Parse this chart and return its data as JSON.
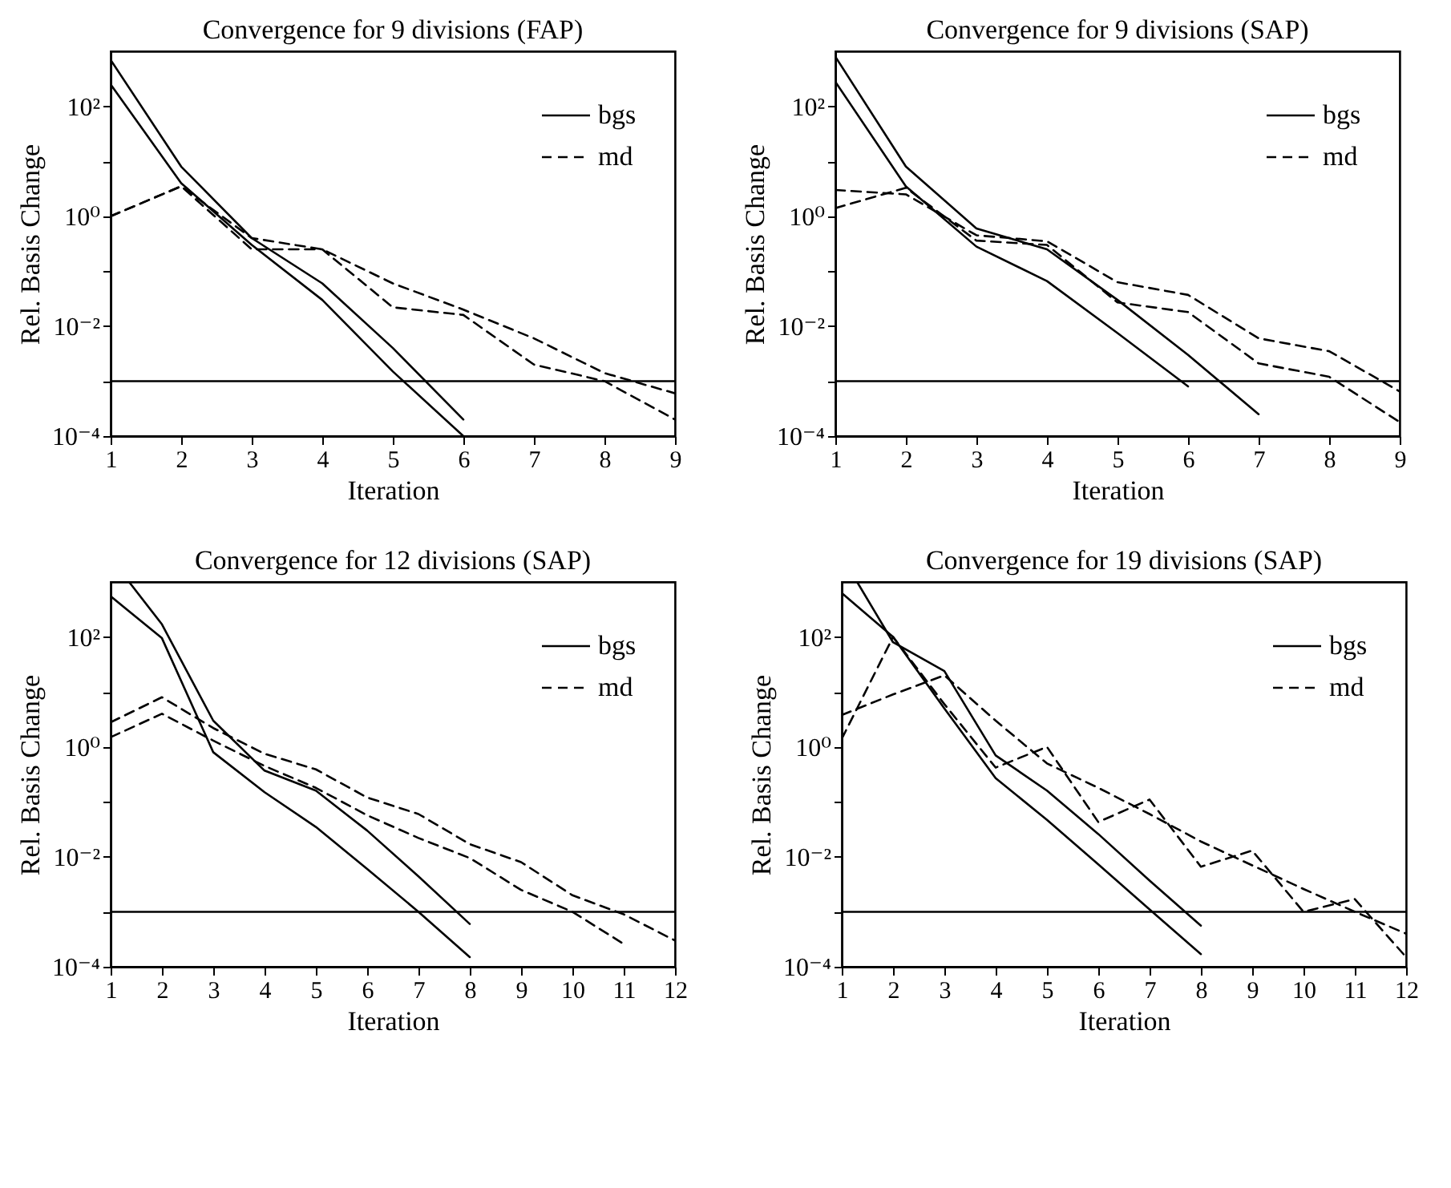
{
  "chart_data": [
    {
      "type": "line",
      "title": "Convergence for 9 divisions (FAP)",
      "xlabel": "Iteration",
      "ylabel": "Rel. Basis Change",
      "x": [
        1,
        2,
        3,
        4,
        5,
        6,
        7,
        8,
        9
      ],
      "log": "y",
      "xlim": [
        1,
        9
      ],
      "xticks": [
        1,
        2,
        3,
        4,
        5,
        6,
        7,
        8,
        9
      ],
      "ylim": [
        0.0001,
        1000
      ],
      "yticks": [
        {
          "value": 0.0001,
          "label": "10⁻⁴"
        },
        {
          "value": 0.001,
          "label": null
        },
        {
          "value": 0.01,
          "label": "10⁻²"
        },
        {
          "value": 0.1,
          "label": null
        },
        {
          "value": 1,
          "label": "10⁰"
        },
        {
          "value": 10,
          "label": null
        },
        {
          "value": 100,
          "label": "10²"
        }
      ],
      "legend": "top right",
      "ref_lines": [
        {
          "axis": "y",
          "value": 0.001,
          "color": "#000000"
        }
      ],
      "series": [
        {
          "name": "bgs",
          "color": "#000000",
          "line_style": "solid",
          "values": [
            700,
            8,
            0.4,
            0.06,
            0.004,
            0.0002,
            null,
            null,
            null
          ]
        },
        {
          "color": "#000000",
          "line_style": "solid",
          "values": [
            250,
            4,
            0.3,
            0.03,
            0.0015,
            0.0001,
            null,
            null,
            null
          ]
        },
        {
          "name": "md",
          "color": "#000000",
          "line_style": "dashed",
          "values": [
            1,
            3.5,
            0.4,
            0.25,
            0.06,
            0.02,
            0.006,
            0.0014,
            0.0006
          ]
        },
        {
          "color": "#000000",
          "line_style": "dashed",
          "values": [
            1,
            3.5,
            0.25,
            0.25,
            0.022,
            0.016,
            0.002,
            0.001,
            0.0002
          ]
        }
      ]
    },
    {
      "type": "line",
      "title": "Convergence for 9 divisions (SAP)",
      "xlabel": "Iteration",
      "ylabel": "Rel. Basis Change",
      "x": [
        1,
        2,
        3,
        4,
        5,
        6,
        7,
        8,
        9
      ],
      "log": "y",
      "xlim": [
        1,
        9
      ],
      "xticks": [
        1,
        2,
        3,
        4,
        5,
        6,
        7,
        8,
        9
      ],
      "ylim": [
        0.0001,
        1000
      ],
      "yticks": [
        {
          "value": 0.0001,
          "label": "10⁻⁴"
        },
        {
          "value": 0.001,
          "label": null
        },
        {
          "value": 0.01,
          "label": "10⁻²"
        },
        {
          "value": 0.1,
          "label": null
        },
        {
          "value": 1,
          "label": "10⁰"
        },
        {
          "value": 10,
          "label": null
        },
        {
          "value": 100,
          "label": "10²"
        }
      ],
      "legend": "top right",
      "ref_lines": [
        {
          "axis": "y",
          "value": 0.001,
          "color": "#000000"
        }
      ],
      "series": [
        {
          "name": "bgs",
          "color": "#000000",
          "line_style": "solid",
          "values": [
            800,
            8,
            0.6,
            0.25,
            0.03,
            0.003,
            0.00025,
            null,
            null
          ]
        },
        {
          "color": "#000000",
          "line_style": "solid",
          "values": [
            280,
            3.5,
            0.28,
            0.066,
            0.0075,
            0.0008,
            null,
            null,
            null
          ]
        },
        {
          "name": "md",
          "color": "#000000",
          "line_style": "dashed",
          "values": [
            3,
            2.5,
            0.45,
            0.35,
            0.063,
            0.037,
            0.006,
            0.0035,
            0.00065
          ]
        },
        {
          "color": "#000000",
          "line_style": "dashed",
          "values": [
            1.4,
            3.3,
            0.36,
            0.3,
            0.027,
            0.018,
            0.0021,
            0.0012,
            0.00018
          ]
        }
      ]
    },
    {
      "type": "line",
      "title": "Convergence for 12 divisions (SAP)",
      "xlabel": "Iteration",
      "ylabel": "Rel. Basis Change",
      "x": [
        1,
        2,
        3,
        4,
        5,
        6,
        7,
        8,
        9,
        10,
        11,
        12
      ],
      "log": "y",
      "xlim": [
        1,
        12
      ],
      "xticks": [
        1,
        2,
        3,
        4,
        5,
        6,
        7,
        8,
        9,
        10,
        11,
        12
      ],
      "ylim": [
        0.0001,
        1000
      ],
      "yticks": [
        {
          "value": 0.0001,
          "label": "10⁻⁴"
        },
        {
          "value": 0.001,
          "label": null
        },
        {
          "value": 0.01,
          "label": "10⁻²"
        },
        {
          "value": 0.1,
          "label": null
        },
        {
          "value": 1,
          "label": "10⁰"
        },
        {
          "value": 10,
          "label": null
        },
        {
          "value": 100,
          "label": "10²"
        }
      ],
      "legend": "top right",
      "ref_lines": [
        {
          "axis": "y",
          "value": 0.001,
          "color": "#000000"
        }
      ],
      "series": [
        {
          "name": "bgs",
          "color": "#000000",
          "line_style": "solid",
          "x": [
            1.36,
            2,
            3,
            4,
            5,
            6,
            7,
            8
          ],
          "values": [
            1000,
            170,
            3,
            0.37,
            0.16,
            0.03,
            0.0044,
            0.0006
          ]
        },
        {
          "color": "#000000",
          "line_style": "solid",
          "x": [
            1,
            2,
            3,
            4,
            5,
            6,
            7,
            8
          ],
          "values": [
            550,
            95,
            0.8,
            0.15,
            0.035,
            0.006,
            0.001,
            0.00015
          ]
        },
        {
          "name": "md",
          "color": "#000000",
          "line_style": "dashed",
          "values": [
            2.8,
            8,
            2.2,
            0.75,
            0.39,
            0.12,
            0.06,
            0.017,
            0.008,
            0.002,
            0.0009,
            0.0003
          ]
        },
        {
          "color": "#000000",
          "line_style": "dashed",
          "values": [
            1.5,
            4,
            1.3,
            0.45,
            0.18,
            0.057,
            0.022,
            0.0095,
            0.0025,
            0.001,
            0.00026,
            null
          ]
        }
      ]
    },
    {
      "type": "line",
      "title": "Convergence for 19 divisions (SAP)",
      "xlabel": "Iteration",
      "ylabel": "Rel. Basis Change",
      "x": [
        1,
        2,
        3,
        4,
        5,
        6,
        7,
        8,
        9,
        10,
        11,
        12
      ],
      "log": "y",
      "xlim": [
        1,
        12
      ],
      "xticks": [
        1,
        2,
        3,
        4,
        5,
        6,
        7,
        8,
        9,
        10,
        11,
        12
      ],
      "ylim": [
        0.0001,
        1000
      ],
      "yticks": [
        {
          "value": 0.0001,
          "label": "10⁻⁴"
        },
        {
          "value": 0.001,
          "label": null
        },
        {
          "value": 0.01,
          "label": "10⁻²"
        },
        {
          "value": 0.1,
          "label": null
        },
        {
          "value": 1,
          "label": "10⁰"
        },
        {
          "value": 10,
          "label": null
        },
        {
          "value": 100,
          "label": "10²"
        }
      ],
      "legend": "top right",
      "ref_lines": [
        {
          "axis": "y",
          "value": 0.001,
          "color": "#000000"
        }
      ],
      "series": [
        {
          "name": "bgs",
          "color": "#000000",
          "line_style": "solid",
          "x": [
            1.3,
            2,
            3,
            4,
            5,
            6,
            7,
            8
          ],
          "values": [
            1000,
            80,
            24,
            0.7,
            0.16,
            0.026,
            0.0037,
            0.00056
          ]
        },
        {
          "color": "#000000",
          "line_style": "solid",
          "x": [
            1,
            2,
            3,
            4,
            5,
            6,
            7,
            8
          ],
          "values": [
            630,
            100,
            5,
            0.27,
            0.047,
            0.0073,
            0.0011,
            0.00017
          ]
        },
        {
          "name": "md",
          "color": "#000000",
          "line_style": "dashed",
          "values": [
            1.4,
            100,
            6,
            0.42,
            1,
            0.043,
            0.11,
            0.0066,
            0.013,
            0.001,
            0.0017,
            0.00015
          ]
        },
        {
          "color": "#000000",
          "line_style": "dashed",
          "values": [
            3.8,
            9,
            20,
            3,
            0.5,
            0.18,
            0.06,
            0.019,
            0.007,
            0.0026,
            0.001,
            0.0004
          ]
        }
      ]
    }
  ]
}
